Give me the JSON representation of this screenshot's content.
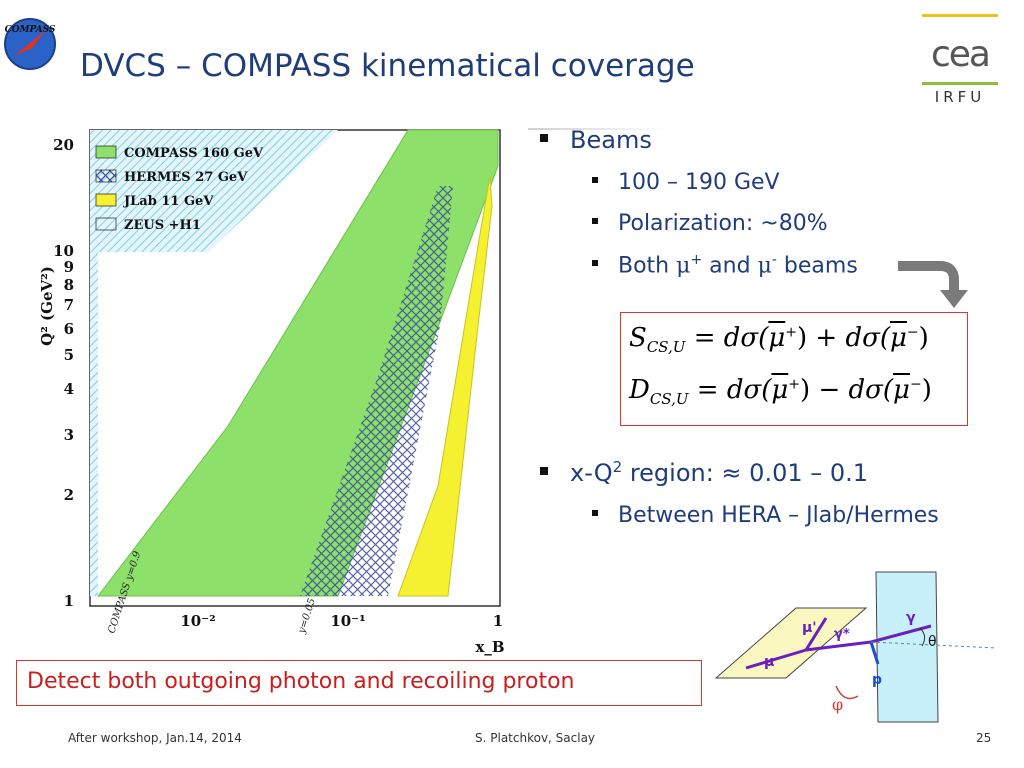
{
  "slide": {
    "title": "DVCS – COMPASS kinematical coverage",
    "compass_logo_text": "COMPASS",
    "cea_logo": {
      "mark": "cea",
      "subtitle": "IRFU"
    }
  },
  "plot": {
    "ylabel": "Q² (GeV²)",
    "xlabel": "x_B",
    "y_ticks": [
      "20",
      "10",
      "9",
      "8",
      "7",
      "6",
      "5",
      "4",
      "3",
      "2",
      "1"
    ],
    "x_ticks": [
      "10⁻²",
      "10⁻¹",
      "1"
    ],
    "legend": [
      {
        "label": "COMPASS 160 GeV",
        "color": "#8de06a"
      },
      {
        "label": "HERMES 27 GeV",
        "color": "#3a4a9a"
      },
      {
        "label": "JLab 11 GeV",
        "color": "#f5f030"
      },
      {
        "label": "ZEUS +H1",
        "color": "#60c8e0"
      }
    ],
    "annotations": [
      "COMPASS  y=0.9",
      "y=0.05"
    ]
  },
  "bullets": [
    {
      "text": "Beams",
      "sub": [
        {
          "text": "100 – 190 GeV"
        },
        {
          "text": "Polarization: ~80%"
        },
        {
          "pre": "Both ",
          "mu1": "μ",
          "sup1": "+",
          "mid": " and ",
          "mu2": "μ",
          "sup2": "-",
          "post": " beams"
        }
      ]
    },
    {
      "pre": "x-Q",
      "sup": "2",
      "post": " region: ≈ 0.01 – 0.1",
      "sub": [
        {
          "text": "Between HERA – Jlab/Hermes"
        }
      ]
    }
  ],
  "formulas": {
    "s": {
      "lhs": "S",
      "sub": "CS,U",
      "op": "+"
    },
    "d": {
      "lhs": "D",
      "sub": "CS,U",
      "op": "−"
    },
    "dsigma": "dσ(",
    "mu": "μ",
    "plus": "+",
    "minus": "−"
  },
  "callout": "Detect both outgoing photon and recoiling proton",
  "diagram": {
    "labels": [
      "μ'",
      "γ*",
      "γ",
      "θ",
      "μ",
      "p",
      "φ"
    ]
  },
  "footer": {
    "left": "After workshop, Jan.14, 2014",
    "center": "S. Platchkov, Saclay",
    "page": "25"
  }
}
